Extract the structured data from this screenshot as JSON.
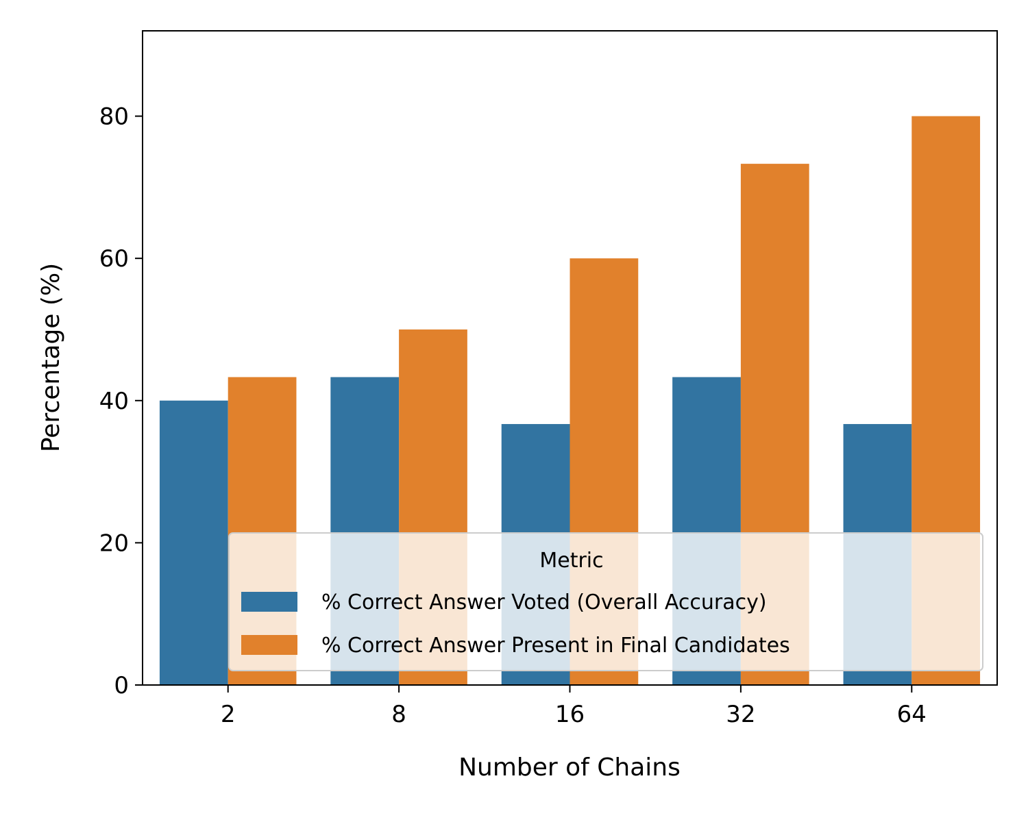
{
  "chart_data": {
    "type": "bar",
    "title": "",
    "xlabel": "Number of Chains",
    "ylabel": "Percentage (%)",
    "categories": [
      "2",
      "8",
      "16",
      "32",
      "64"
    ],
    "series": [
      {
        "name": "% Correct Answer Voted (Overall Accuracy)",
        "color": "#3274a1",
        "values": [
          40.0,
          43.3,
          36.7,
          43.3,
          36.7
        ]
      },
      {
        "name": "% Correct Answer Present in Final Candidates",
        "color": "#e1812c",
        "values": [
          43.3,
          50.0,
          60.0,
          73.3,
          80.0
        ]
      }
    ],
    "ylim": [
      0,
      92
    ],
    "yticks": [
      0,
      20,
      40,
      60,
      80
    ],
    "grid": false,
    "legend": {
      "title": "Metric",
      "placement": "lower-right"
    }
  }
}
